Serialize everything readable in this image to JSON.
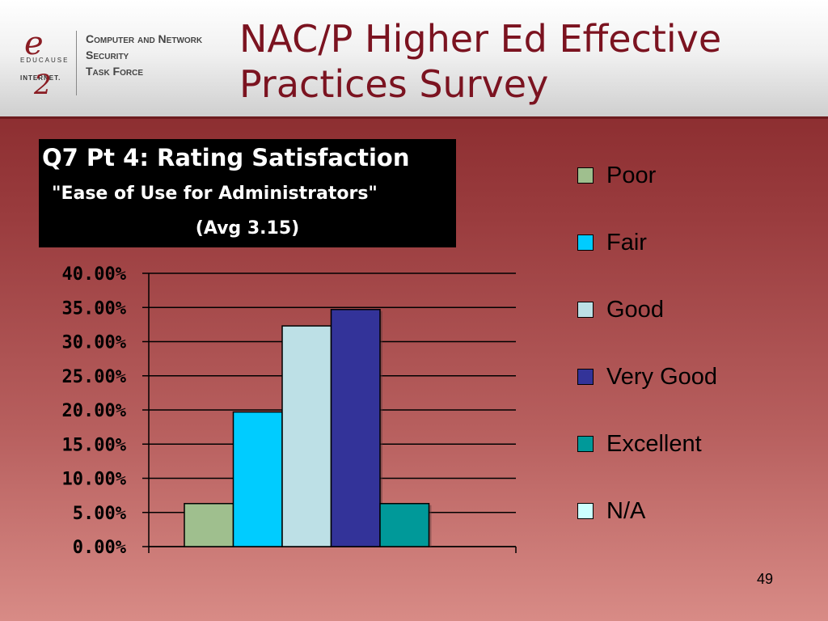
{
  "header": {
    "title": "NAC/P Higher Ed Effective\nPractices Survey",
    "logo": {
      "mark": "e",
      "educause": "EDUCAUSE",
      "internet": "INTERNET.",
      "internet_mark": "2",
      "lines": [
        "Computer and Network",
        "Security",
        "Task Force"
      ]
    }
  },
  "chart_data": {
    "type": "bar",
    "title": "Q7 Pt 4: Rating Satisfaction",
    "subtitle": "\"Ease of Use for Administrators\"",
    "subtitle2": "(Avg 3.15)",
    "categories": [
      "Poor",
      "Fair",
      "Good",
      "Very Good",
      "Excellent",
      "N/A"
    ],
    "values": [
      6.3,
      19.7,
      32.3,
      34.7,
      6.3,
      0
    ],
    "colors": [
      "#9fbf8e",
      "#00ccff",
      "#bde0e6",
      "#333399",
      "#009999",
      "#ccffff"
    ],
    "ylim": [
      0,
      40
    ],
    "yticks": [
      "0.00%",
      "5.00%",
      "10.00%",
      "15.00%",
      "20.00%",
      "25.00%",
      "30.00%",
      "35.00%",
      "40.00%"
    ],
    "grid": true,
    "legend_position": "right"
  },
  "footer": {
    "slide_number": "49"
  }
}
